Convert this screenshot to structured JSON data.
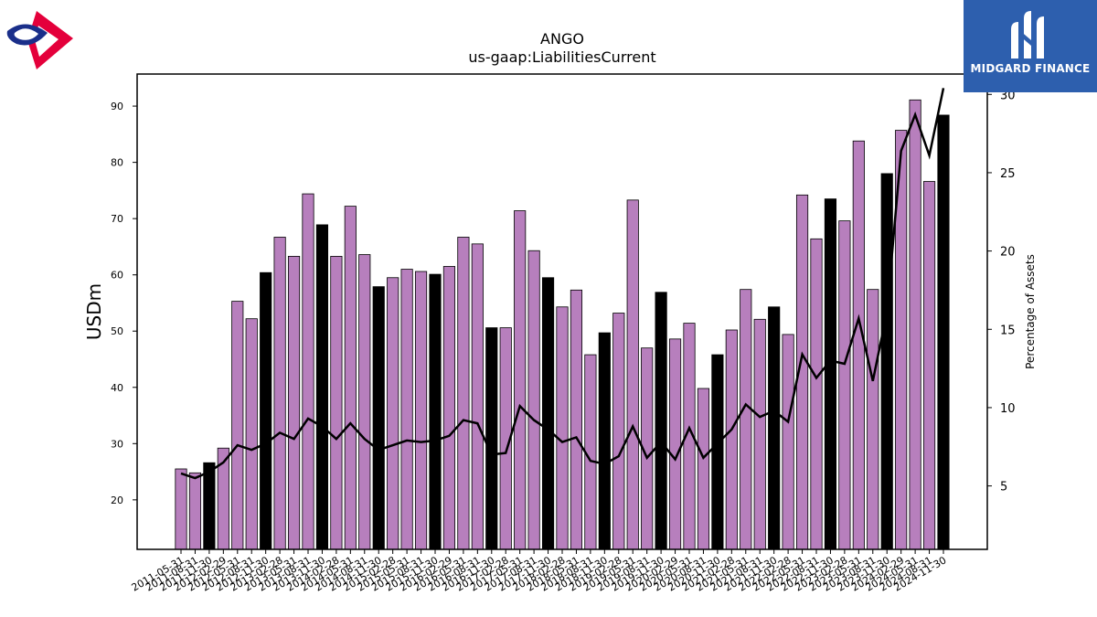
{
  "brand": {
    "name": "MIDGARD FINANCE",
    "logo_icon": "midgard-m-icon",
    "corner_logo_icon": "red-blue-ring-logo-icon"
  },
  "chart_data": {
    "type": "bar",
    "title": "ANGO",
    "subtitle": "us-gaap:LiabilitiesCurrent",
    "ylabel": "USDm",
    "y2label": "Percentage of Assets",
    "ylim": [
      11.2,
      95.7
    ],
    "y2lim": [
      0.95,
      31.3
    ],
    "yticks": [
      20,
      30,
      40,
      50,
      60,
      70,
      80,
      90
    ],
    "y2ticks": [
      5,
      10,
      15,
      20,
      25,
      30
    ],
    "colors": {
      "bar": "#b77fbd",
      "bar_highlight": "#000000",
      "line": "#000000"
    },
    "categories": [
      "2011-05-31",
      "2011-08-31",
      "2011-11-30",
      "2012-02-29",
      "2012-05-31",
      "2012-08-31",
      "2012-11-30",
      "2013-02-28",
      "2013-05-31",
      "2013-08-31",
      "2013-11-30",
      "2014-02-28",
      "2014-05-31",
      "2014-08-31",
      "2014-11-30",
      "2015-02-28",
      "2015-05-31",
      "2015-08-31",
      "2015-11-30",
      "2016-02-29",
      "2016-05-31",
      "2016-08-31",
      "2016-11-30",
      "2017-02-28",
      "2017-05-31",
      "2017-08-31",
      "2017-11-30",
      "2018-02-28",
      "2018-05-31",
      "2018-08-31",
      "2018-11-30",
      "2019-02-28",
      "2019-05-31",
      "2019-08-31",
      "2019-11-30",
      "2020-02-29",
      "2020-05-31",
      "2020-08-31",
      "2020-11-30",
      "2021-02-28",
      "2021-05-31",
      "2021-08-31",
      "2021-11-30",
      "2022-02-28",
      "2022-05-31",
      "2022-08-31",
      "2022-11-30",
      "2023-02-28",
      "2023-05-31",
      "2023-08-31",
      "2023-11-30",
      "2024-02-29",
      "2024-05-31",
      "2024-08-31",
      "2024-11-30"
    ],
    "series": [
      {
        "values": [
          25.5,
          24.8,
          26.6,
          29.2,
          55.3,
          52.2,
          60.4,
          66.7,
          63.3,
          74.4,
          68.9,
          63.3,
          72.2,
          63.6,
          57.9,
          59.5,
          61.0,
          60.6,
          60.1,
          61.5,
          66.7,
          65.5,
          50.6,
          50.6,
          71.4,
          64.3,
          59.5,
          54.3,
          57.3,
          45.8,
          49.7,
          53.2,
          73.3,
          47.0,
          56.9,
          48.6,
          51.4,
          39.8,
          45.8,
          50.2,
          57.4,
          52.1,
          54.3,
          49.4,
          74.2,
          66.4,
          73.5,
          69.6,
          83.8,
          57.4,
          78.0,
          85.7,
          91.1,
          76.6,
          88.4
        ],
        "highlight": [
          false,
          false,
          true,
          false,
          false,
          false,
          true,
          false,
          false,
          false,
          true,
          false,
          false,
          false,
          true,
          false,
          false,
          false,
          true,
          false,
          false,
          false,
          true,
          false,
          false,
          false,
          true,
          false,
          false,
          false,
          true,
          false,
          false,
          false,
          true,
          false,
          false,
          false,
          true,
          false,
          false,
          false,
          true,
          false,
          false,
          false,
          true,
          false,
          false,
          false,
          true,
          false,
          false,
          false,
          true
        ]
      },
      {
        "axis": "right",
        "values": [
          5.8,
          5.5,
          5.9,
          6.5,
          7.6,
          7.3,
          7.7,
          8.4,
          8.0,
          9.3,
          8.8,
          8.0,
          9.0,
          8.0,
          7.3,
          7.6,
          7.9,
          7.8,
          7.9,
          8.2,
          9.2,
          9.0,
          7.0,
          7.1,
          10.1,
          9.2,
          8.6,
          7.8,
          8.1,
          6.6,
          6.4,
          6.9,
          8.8,
          6.8,
          7.8,
          6.7,
          8.7,
          6.8,
          7.7,
          8.6,
          10.2,
          9.4,
          9.8,
          9.1,
          13.4,
          11.9,
          13.0,
          12.8,
          15.7,
          11.7,
          16.1,
          26.4,
          28.7,
          26.1,
          30.4
        ]
      }
    ]
  }
}
